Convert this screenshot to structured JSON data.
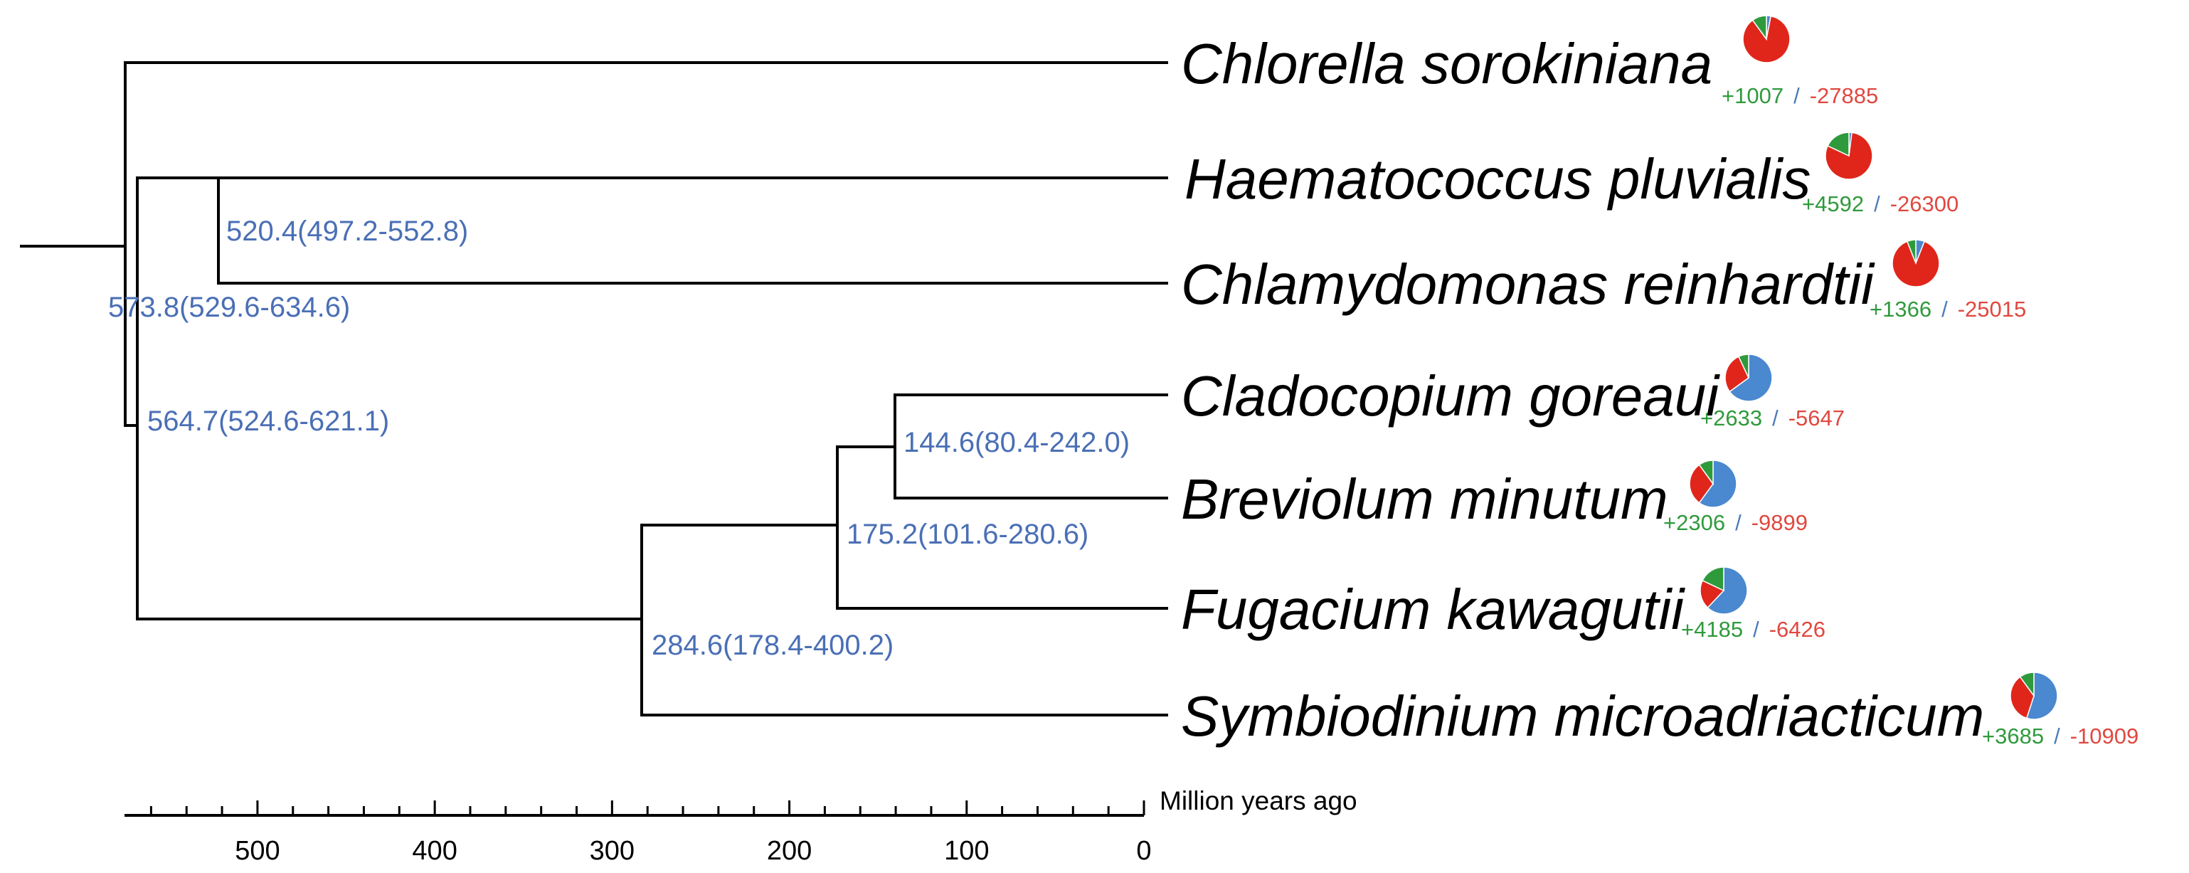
{
  "colors": {
    "node_label": "#4a6fb5",
    "gain": "#2f9a3c",
    "loss": "#e0483f",
    "pie_blue": "#4a88cf",
    "pie_red": "#e0261b",
    "pie_green": "#2f9a3c"
  },
  "tree": {
    "species": [
      {
        "name": "Chlorella sorokiniana",
        "gain": "+1007",
        "loss": "-27885",
        "pie": [
          0.03,
          0.87,
          0.1
        ]
      },
      {
        "name": "Haematococcus pluvialis",
        "gain": "+4592",
        "loss": "-26300",
        "pie": [
          0.02,
          0.8,
          0.18
        ]
      },
      {
        "name": "Chlamydomonas reinhardtii",
        "gain": "+1366",
        "loss": "-25015",
        "pie": [
          0.06,
          0.88,
          0.06
        ]
      },
      {
        "name": "Cladocopium goreaui",
        "gain": "+2633",
        "loss": "-5647",
        "pie": [
          0.65,
          0.28,
          0.07
        ]
      },
      {
        "name": "Breviolum minutum",
        "gain": "+2306",
        "loss": "-9899",
        "pie": [
          0.6,
          0.3,
          0.1
        ]
      },
      {
        "name": "Fugacium kawagutii",
        "gain": "+4185",
        "loss": "-6426",
        "pie": [
          0.62,
          0.2,
          0.18
        ]
      },
      {
        "name": "Symbiodinium microadriacticum",
        "gain": "+3685",
        "loss": "-10909",
        "pie": [
          0.55,
          0.35,
          0.1
        ]
      }
    ],
    "nodes": [
      {
        "label": "573.8(529.6-634.6)"
      },
      {
        "label": "520.4(497.2-552.8)"
      },
      {
        "label": "564.7(524.6-621.1)"
      },
      {
        "label": "284.6(178.4-400.2)"
      },
      {
        "label": "175.2(101.6-280.6)"
      },
      {
        "label": "144.6(80.4-242.0)"
      }
    ],
    "separator": "/"
  },
  "axis": {
    "title": "Million years ago",
    "ticks": [
      "500",
      "400",
      "300",
      "200",
      "100",
      "0"
    ],
    "range": [
      575,
      0
    ],
    "minor_step": 20
  }
}
